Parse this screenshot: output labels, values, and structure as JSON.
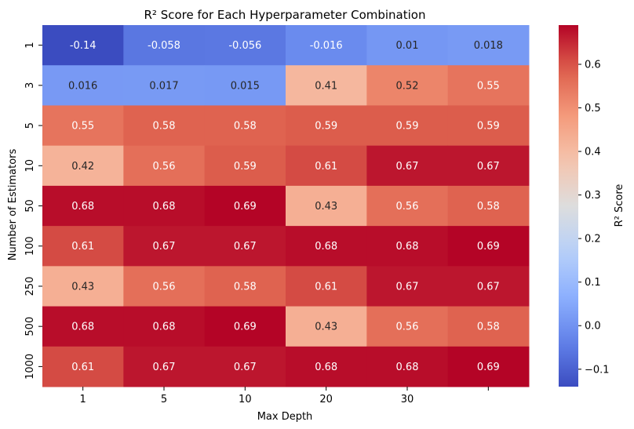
{
  "chart_data": {
    "type": "heatmap",
    "title": "R² Score for Each Hyperparameter Combination",
    "xlabel": "Max Depth",
    "ylabel": "Number of Estimators",
    "x_categories": [
      "1",
      "5",
      "10",
      "20",
      "30",
      ""
    ],
    "y_categories": [
      "1",
      "3",
      "5",
      "10",
      "50",
      "100",
      "250",
      "500",
      "1000"
    ],
    "values": [
      [
        -0.14,
        -0.058,
        -0.056,
        -0.016,
        0.01,
        0.018
      ],
      [
        0.016,
        0.017,
        0.015,
        0.41,
        0.52,
        0.55
      ],
      [
        0.55,
        0.58,
        0.58,
        0.59,
        0.59,
        0.59
      ],
      [
        0.42,
        0.56,
        0.59,
        0.61,
        0.67,
        0.67
      ],
      [
        0.68,
        0.68,
        0.69,
        0.43,
        0.56,
        0.58
      ],
      [
        0.61,
        0.67,
        0.67,
        0.68,
        0.68,
        0.69
      ],
      [
        0.43,
        0.56,
        0.58,
        0.61,
        0.67,
        0.67
      ],
      [
        0.68,
        0.68,
        0.69,
        0.43,
        0.56,
        0.58
      ],
      [
        0.61,
        0.67,
        0.67,
        0.68,
        0.68,
        0.69
      ]
    ],
    "labels": [
      [
        "-0.14",
        "-0.058",
        "-0.056",
        "-0.016",
        "0.01",
        "0.018"
      ],
      [
        "0.016",
        "0.017",
        "0.015",
        "0.41",
        "0.52",
        "0.55"
      ],
      [
        "0.55",
        "0.58",
        "0.58",
        "0.59",
        "0.59",
        "0.59"
      ],
      [
        "0.42",
        "0.56",
        "0.59",
        "0.61",
        "0.67",
        "0.67"
      ],
      [
        "0.68",
        "0.68",
        "0.69",
        "0.43",
        "0.56",
        "0.58"
      ],
      [
        "0.61",
        "0.67",
        "0.67",
        "0.68",
        "0.68",
        "0.69"
      ],
      [
        "0.43",
        "0.56",
        "0.58",
        "0.61",
        "0.67",
        "0.67"
      ],
      [
        "0.68",
        "0.68",
        "0.69",
        "0.43",
        "0.56",
        "0.58"
      ],
      [
        "0.61",
        "0.67",
        "0.67",
        "0.68",
        "0.68",
        "0.69"
      ]
    ],
    "colormap": "coolwarm",
    "vmin": -0.14,
    "vmax": 0.69,
    "colorbar": {
      "label": "R² Score",
      "ticks": [
        -0.1,
        0.0,
        0.1,
        0.2,
        0.3,
        0.4,
        0.5,
        0.6
      ],
      "tick_labels": [
        "−0.1",
        "0.0",
        "0.1",
        "0.2",
        "0.3",
        "0.4",
        "0.5",
        "0.6"
      ]
    }
  }
}
